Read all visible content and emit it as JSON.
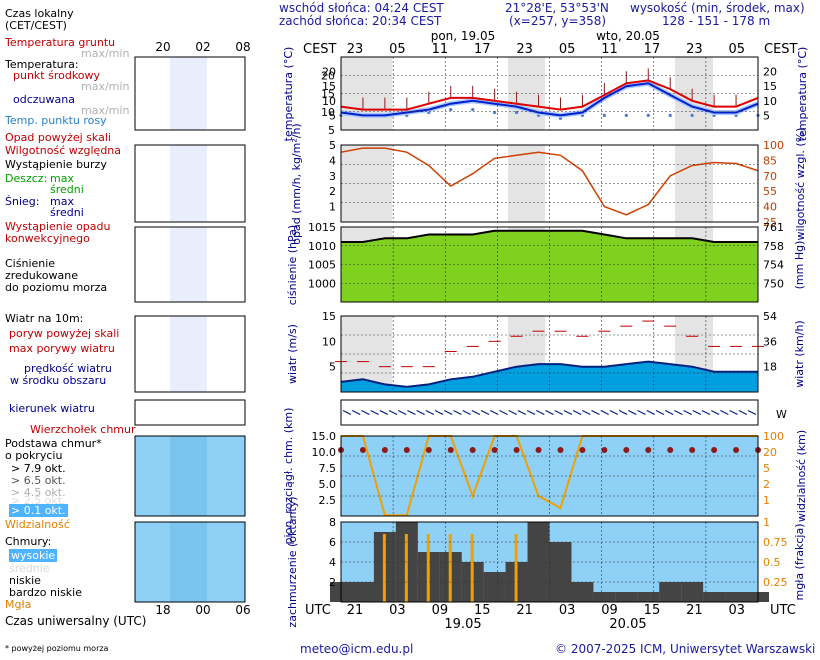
{
  "header": {
    "sunrise": "wschód słońca: 04:24 CEST",
    "sunset": "zachód słońca: 20:34 CEST",
    "coords": "21°28'E, 53°53'N",
    "grid": "(x=257,  y=358)",
    "height_label": "wysokość (min, środek, max)",
    "height_values": "128 - 151 - 178 m"
  },
  "legend": {
    "time_local": "Czas lokalny",
    "time_local2": "(CET/CEST)",
    "soil_temp": "Temperatura gruntu",
    "max_min": "max/min",
    "temperature": "Temperatura:",
    "midpoint": "punkt środkowy",
    "max_min2": "max/min",
    "perceived": "odczuwana",
    "max_min3": "max/min",
    "dew_point": "Temp. punktu rosy",
    "precip_above": "Opad powyżej skali",
    "humidity": "Wilgotność względna",
    "storm": "Wystąpienie burzy",
    "rain": "Deszcz:",
    "rain_max": "max",
    "rain_avg": "średni",
    "snow": "Śnieg:",
    "snow_max": "max",
    "snow_avg": "średni",
    "precip_conv": "Wystąpienie opadu",
    "precip_conv2": "konwekcyjnego",
    "pressure": "Ciśnienie",
    "pressure2": "zredukowane",
    "pressure3": "do poziomu morza",
    "wind_10m": "Wiatr na 10m:",
    "gust_above": "poryw powyżej skali",
    "max_gust": "max porywy wiatru",
    "wind_speed": "prędkość wiatru",
    "wind_area": "w środku obszaru",
    "wind_dir": "kierunek wiatru",
    "cloud_top": "Wierzchołek chmur",
    "cloud_base": "Podstawa chmur*",
    "coverage": "o pokryciu",
    "okt79": "> 7.9 okt.",
    "okt65": "> 6.5 okt.",
    "okt45": "> 4.5 okt.",
    "okt25": "> 2.5 okt.",
    "okt01": "> 0.1 okt.",
    "visibility": "Widzialność",
    "clouds": "Chmury:",
    "high": "wysokie",
    "mid": "średnie",
    "low": "niskie",
    "very_low": "bardzo niskie",
    "fog": "Mgła",
    "utc": "Czas uniwersalny (UTC)",
    "footnote": "* powyżej poziomu morza"
  },
  "axes": {
    "cest": "CEST",
    "utc": "UTC",
    "day1": "pon, 19.05",
    "day2": "wto, 20.05",
    "date1": "19.05",
    "date2": "20.05",
    "cest_hours": [
      "23",
      "05",
      "11",
      "17",
      "23",
      "05",
      "11",
      "17",
      "23",
      "05"
    ],
    "utc_hours": [
      "21",
      "03",
      "09",
      "15",
      "21",
      "03",
      "09",
      "15",
      "21",
      "03"
    ],
    "mini_top": [
      "20",
      "02",
      "08"
    ],
    "mini_bottom": [
      "18",
      "00",
      "06"
    ],
    "temp_label": "temperatura (°C)",
    "precip_label": "opad (mm/h, kg/m²/h)",
    "humidity_label": "wilgotność wzgl. (%)",
    "pressure_label": "ciśnienie (hPa)",
    "pressure_label2": "(mm Hg)",
    "wind_label": "wiatr (m/s)",
    "wind_label2": "wiatr (km/h)",
    "cloud_label": "pion. rozciągł. chm. (km)",
    "vis_label": "widzialność (km)",
    "cover_label": "zachmurzenie (oktanty)",
    "fog_label": "mgła (frakcja)"
  },
  "footer": {
    "email": "meteo@icm.edu.pl",
    "copyright": "© 2007-2025 ICM, Uniwersytet Warszawski"
  },
  "chart_data": {
    "type": "line",
    "x_cest": [
      "23",
      "02",
      "05",
      "08",
      "11",
      "14",
      "17",
      "20",
      "23",
      "02",
      "05",
      "08",
      "11",
      "14",
      "17",
      "20",
      "23",
      "02",
      "05",
      "08"
    ],
    "series": [
      {
        "panel": "temperatura",
        "values": [
          8,
          7,
          7,
          7,
          9,
          11,
          11,
          10,
          9,
          8,
          7,
          8,
          12,
          16,
          17,
          14,
          10,
          8,
          8,
          11
        ]
      },
      {
        "panel": "temperatura",
        "values": [
          6,
          5,
          5,
          6,
          7,
          9,
          10,
          9,
          8,
          6,
          5,
          6,
          11,
          15,
          16,
          12,
          8,
          6,
          6,
          9
        ]
      },
      {
        "panel": "temperatura",
        "values": [
          5,
          5,
          5,
          5,
          6,
          7,
          7,
          6,
          6,
          5,
          4,
          5,
          5,
          5,
          5,
          5,
          5,
          5,
          5,
          5
        ]
      },
      {
        "panel": "wilgotność",
        "values": [
          93,
          97,
          97,
          93,
          80,
          60,
          72,
          87,
          90,
          93,
          90,
          75,
          40,
          32,
          42,
          70,
          80,
          83,
          82,
          75
        ]
      },
      {
        "panel": "ciśnienie",
        "values": [
          1011,
          1011,
          1012,
          1012,
          1013,
          1013,
          1013,
          1014,
          1014,
          1014,
          1014,
          1014,
          1013,
          1012,
          1012,
          1012,
          1012,
          1011,
          1011,
          1011
        ]
      },
      {
        "panel": "wiatr",
        "values": [
          2,
          2.5,
          1.5,
          1,
          1.5,
          2.5,
          3,
          4,
          5,
          5.5,
          5.5,
          5,
          5,
          5.5,
          6,
          5.5,
          5,
          4,
          4,
          4
        ]
      },
      {
        "panel": "porywy",
        "values": [
          6,
          6,
          5,
          5,
          5,
          8,
          9,
          10,
          11,
          12,
          12,
          11,
          12,
          13,
          14,
          13,
          11,
          9,
          9,
          9
        ]
      },
      {
        "panel": "widzialność",
        "values": [
          20,
          20,
          0.2,
          0.2,
          20,
          20,
          5,
          20,
          20,
          5,
          2,
          20,
          20,
          20,
          20,
          20,
          20,
          20,
          20,
          20
        ]
      }
    ],
    "temp_ylim": [
      0,
      25
    ],
    "precip_ylim": [
      0,
      5
    ],
    "humidity_ylim": [
      25,
      100
    ],
    "pressure_ylim": [
      995,
      1015
    ],
    "wind_ylim": [
      0,
      15
    ],
    "cloud_ylim": [
      0,
      15
    ],
    "cover_ylim": [
      0,
      8
    ]
  }
}
